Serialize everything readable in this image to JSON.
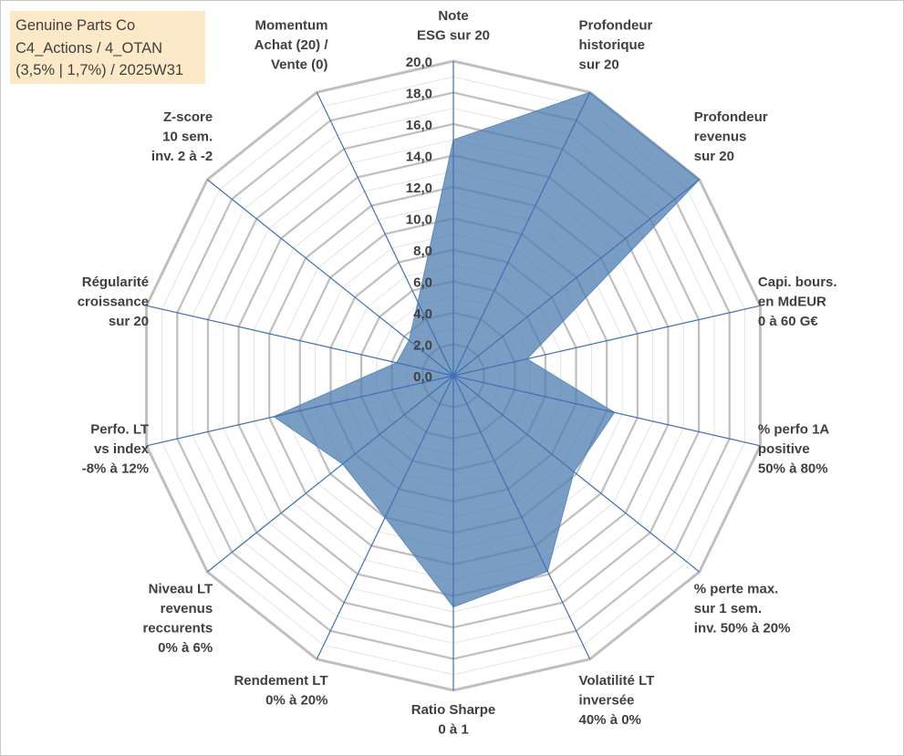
{
  "title_box": {
    "line1": "Genuine Parts Co",
    "line2": "C4_Actions / 4_OTAN",
    "line3": "(3,5% | 1,7%) / 2025W31"
  },
  "chart_data": {
    "type": "radar",
    "title": "",
    "axes": [
      [
        "Note",
        "ESG sur 20"
      ],
      [
        "Profondeur",
        "historique",
        "sur 20"
      ],
      [
        "Profondeur",
        "revenus",
        "sur 20"
      ],
      [
        "Capi. bours.",
        "en MdEUR",
        "0 à 60 G€"
      ],
      [
        "% perfo 1A",
        "positive",
        "50% à 80%"
      ],
      [
        "% perte max.",
        "sur 1 sem.",
        "inv. 50% à 20%"
      ],
      [
        "Volatilité LT",
        "inversée",
        "40% à 0%"
      ],
      [
        "Ratio Sharpe",
        "0 à 1"
      ],
      [
        "Rendement LT",
        "0% à 20%"
      ],
      [
        "Niveau LT",
        "revenus",
        "reccurents",
        "0% à 6%"
      ],
      [
        "Perfo. LT",
        "vs index",
        "-8% à 12%"
      ],
      [
        "Régularité",
        "croissance",
        "sur 20"
      ],
      [
        "Z-score",
        "10 sem.",
        "inv. 2 à -2"
      ],
      [
        "Momentum",
        "Achat (20) /",
        "Vente (0)"
      ]
    ],
    "ticks": [
      "0,0",
      "2,0",
      "4,0",
      "6,0",
      "8,0",
      "10,0",
      "12,0",
      "14,0",
      "16,0",
      "18,0",
      "20,0"
    ],
    "rmax": 20,
    "series": [
      {
        "values": [
          15.0,
          20.0,
          20.0,
          4.8,
          10.5,
          9.8,
          13.8,
          14.7,
          10.0,
          9.0,
          11.7,
          3.7,
          3.6,
          5.2
        ]
      }
    ],
    "colors": {
      "fill": "#4e7cb0",
      "fill_opacity": 0.75,
      "spoke": "#3f6fb5",
      "grid_major": "#bfbfbf",
      "grid_minor": "#e4e4e4"
    }
  }
}
